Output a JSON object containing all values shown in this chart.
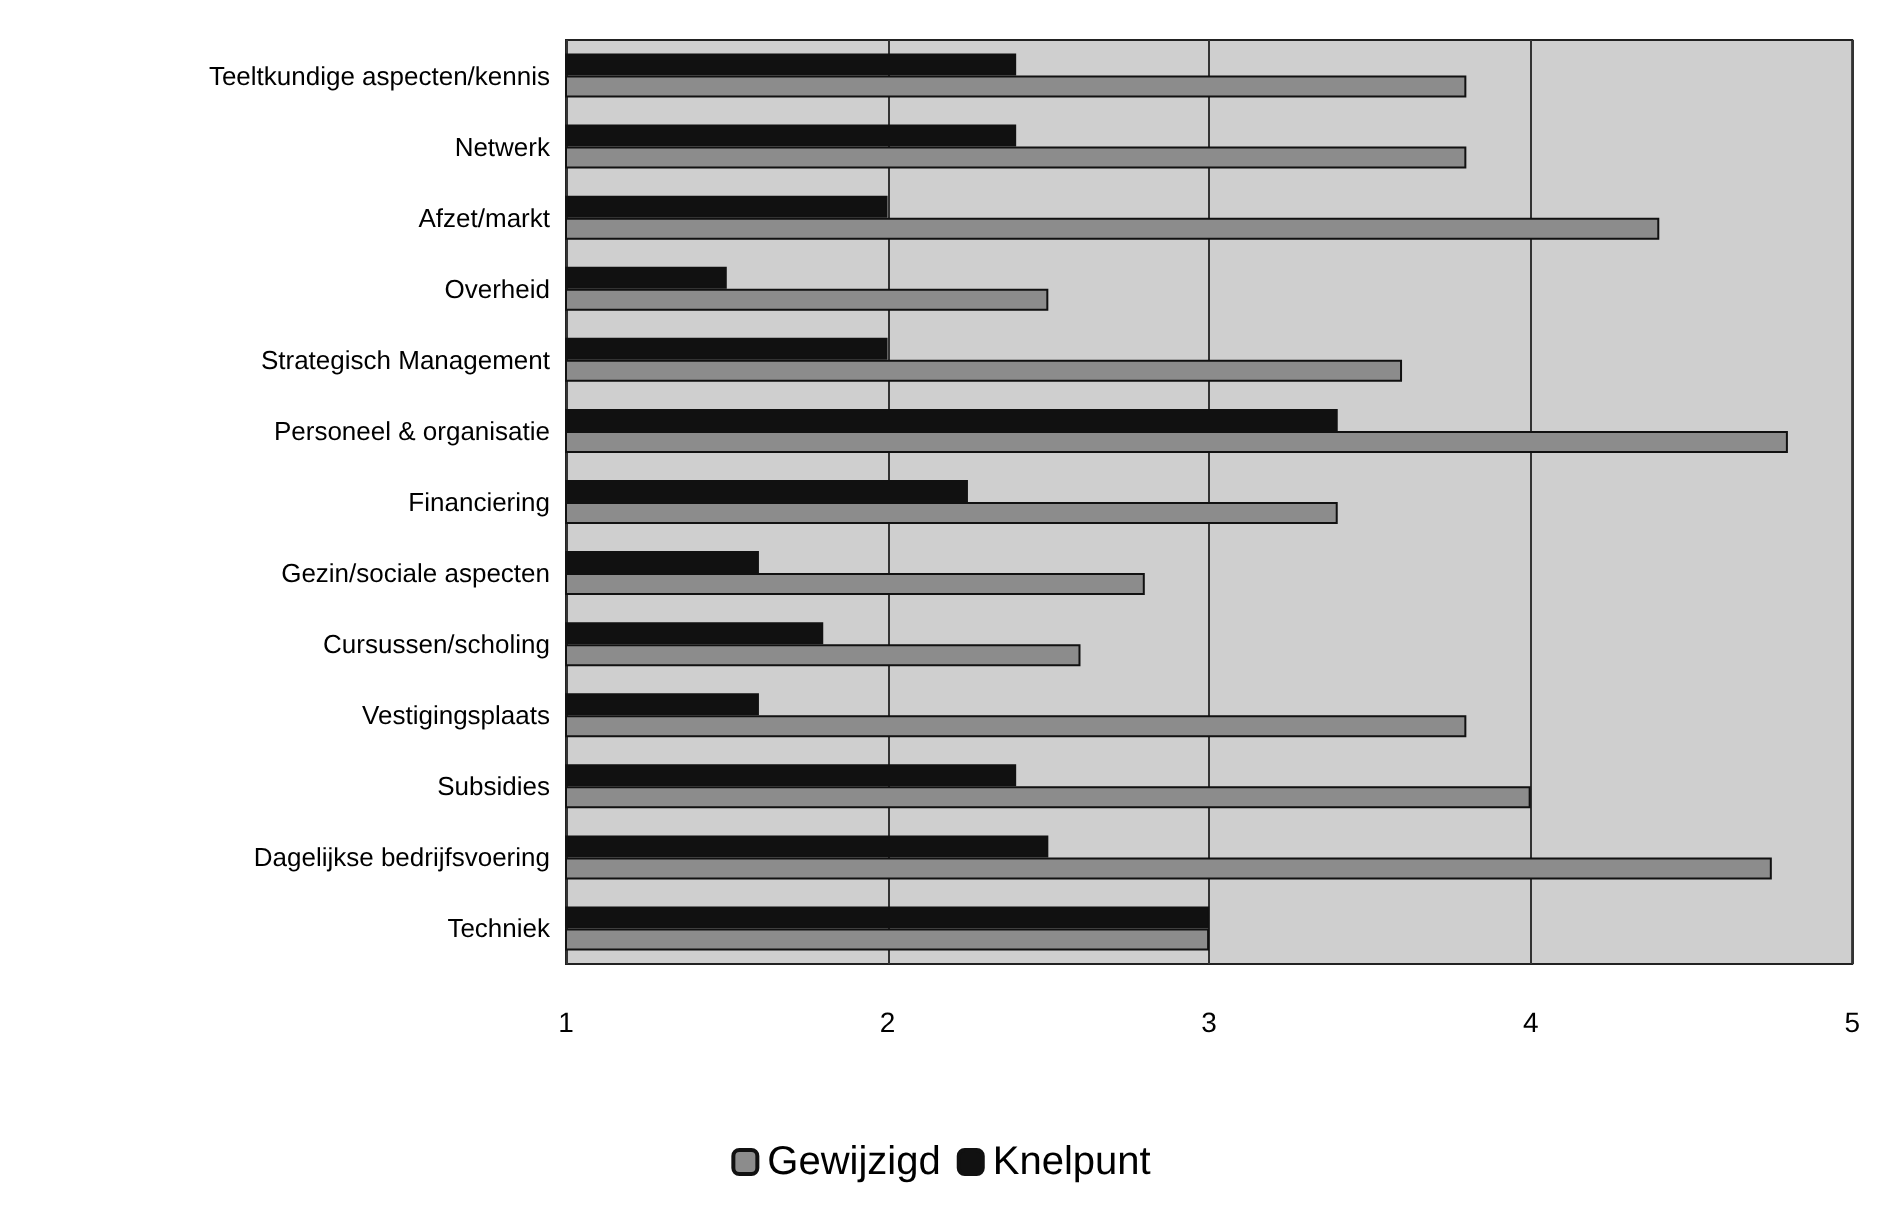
{
  "chart_data": {
    "type": "bar",
    "orientation": "horizontal",
    "categories": [
      "Teeltkundige aspecten/kennis",
      "Netwerk",
      "Afzet/markt",
      "Overheid",
      "Strategisch Management",
      "Personeel & organisatie",
      "Financiering",
      "Gezin/sociale aspecten",
      "Cursussen/scholing",
      "Vestigingsplaats",
      "Subsidies",
      "Dagelijkse bedrijfsvoering",
      "Techniek"
    ],
    "series": [
      {
        "name": "Gewijzigd",
        "color": "#8c8c8c",
        "values": [
          3.8,
          3.8,
          4.4,
          2.5,
          3.6,
          4.8,
          3.4,
          2.8,
          2.6,
          3.8,
          4.0,
          4.75,
          3.0
        ]
      },
      {
        "name": "Knelpunt",
        "color": "#111111",
        "values": [
          2.4,
          2.4,
          2.0,
          1.5,
          2.0,
          3.4,
          2.25,
          1.6,
          1.8,
          1.6,
          2.4,
          2.5,
          3.0
        ]
      }
    ],
    "xlim": [
      1,
      5
    ],
    "xticks": [
      1,
      2,
      3,
      4,
      5
    ],
    "grid": "x",
    "legend": "bottom"
  }
}
